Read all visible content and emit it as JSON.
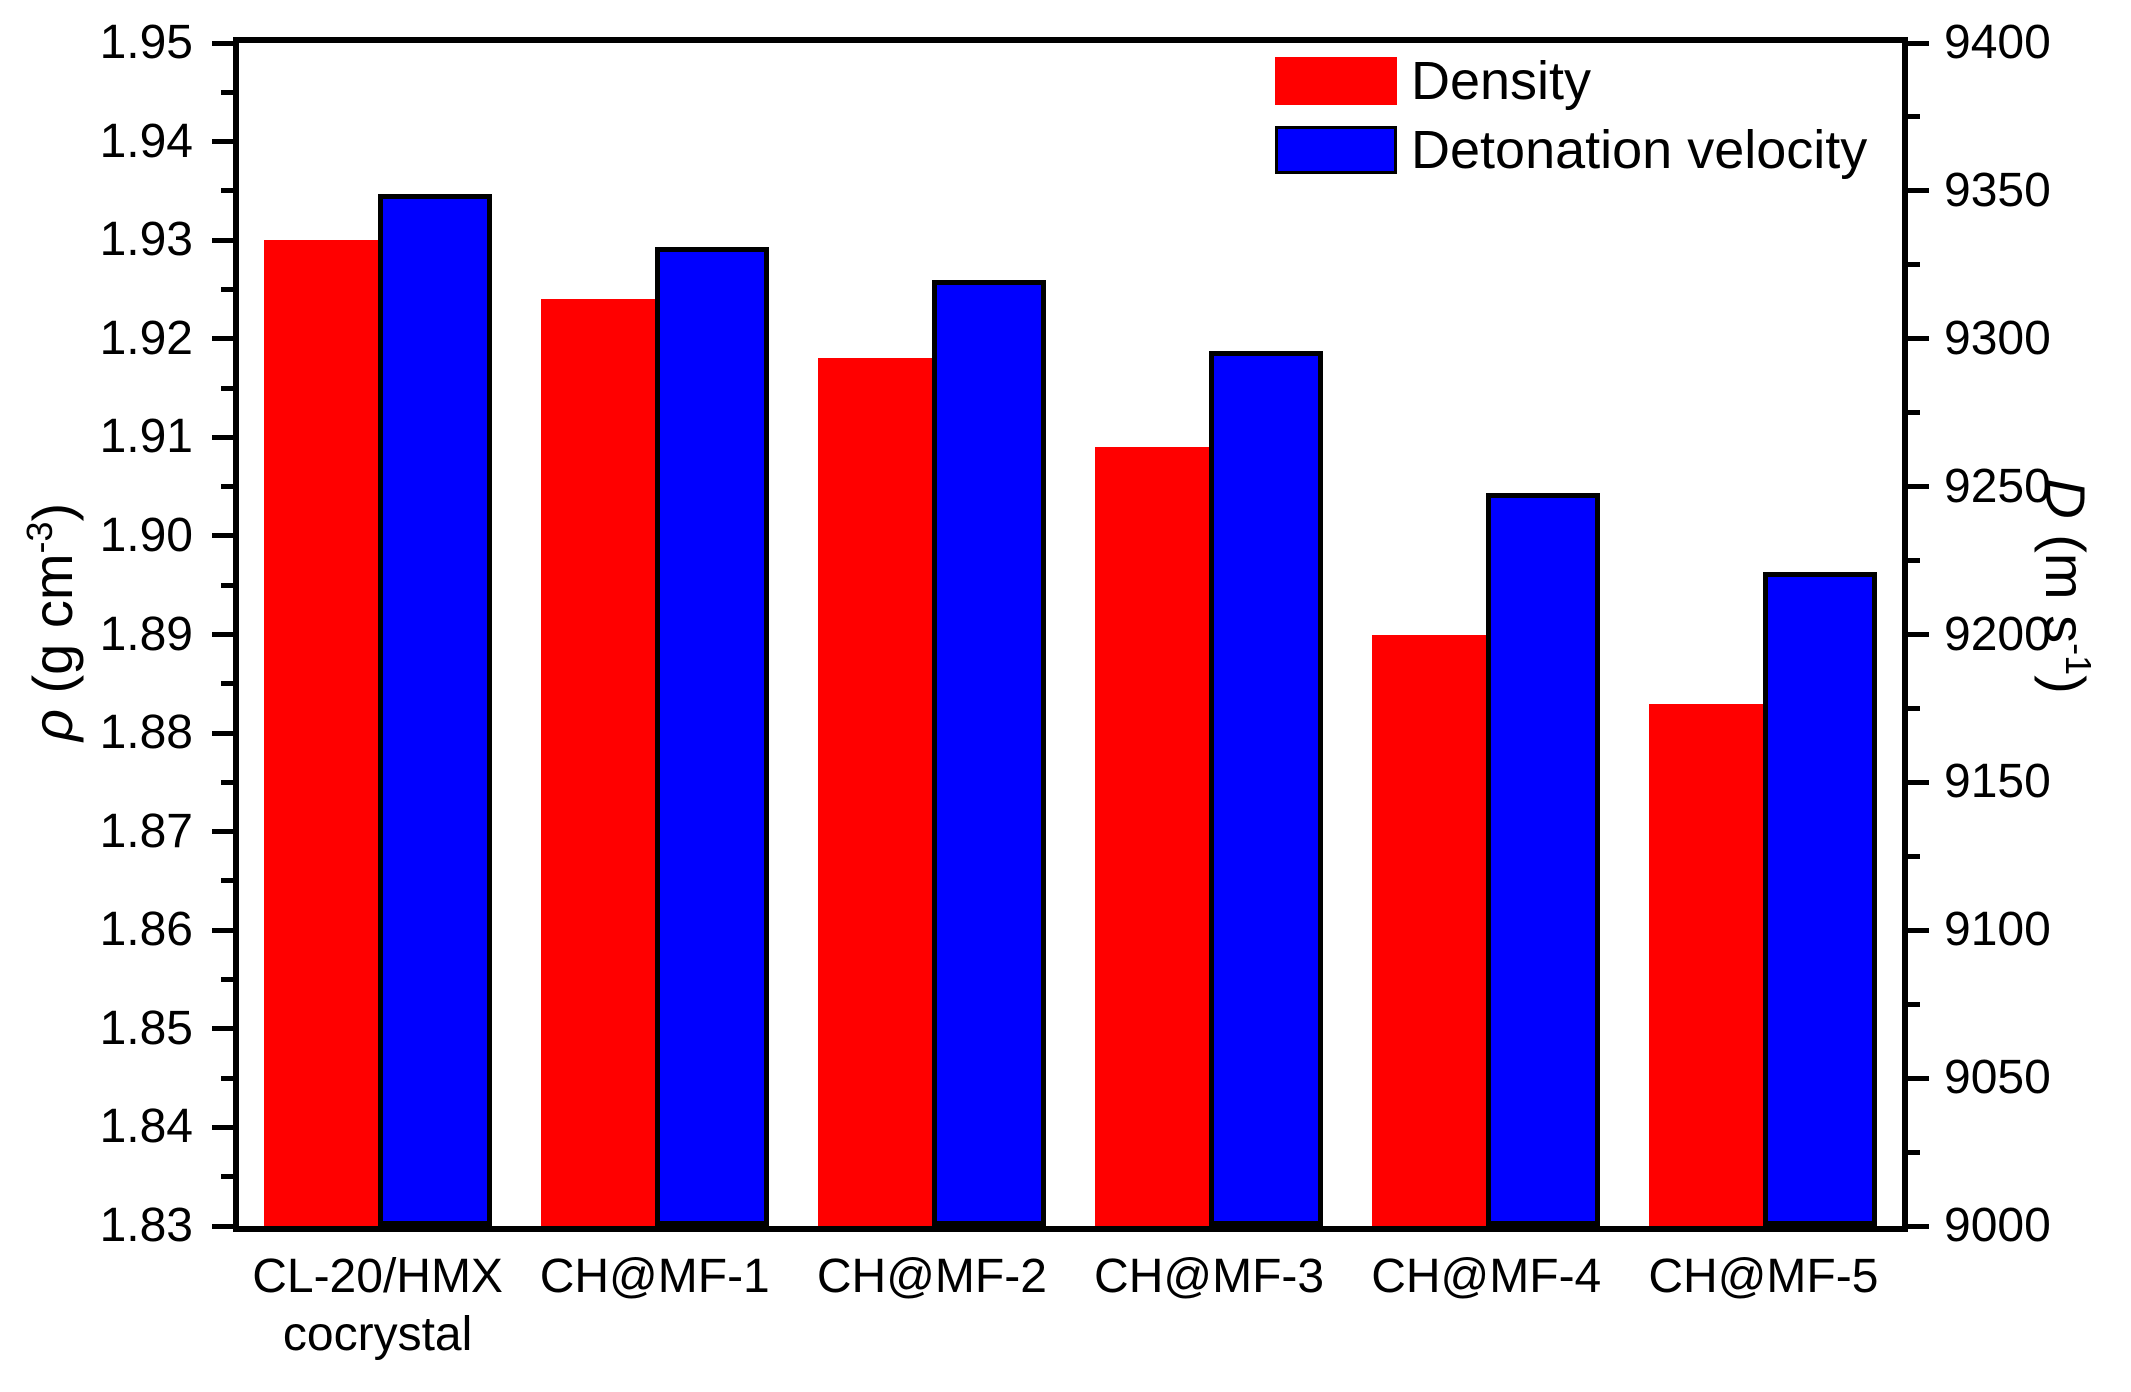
{
  "chart_data": {
    "type": "bar",
    "title": "",
    "categories": [
      "CL-20/HMX cocrystal",
      "CH@MF-1",
      "CH@MF-2",
      "CH@MF-3",
      "CH@MF-4",
      "CH@MF-5"
    ],
    "category_label_lines": [
      [
        "CL-20/HMX",
        "cocrystal"
      ],
      [
        "CH@MF-1"
      ],
      [
        "CH@MF-2"
      ],
      [
        "CH@MF-3"
      ],
      [
        "CH@MF-4"
      ],
      [
        "CH@MF-5"
      ]
    ],
    "series": [
      {
        "name": "Density",
        "axis": "left",
        "color": "#ff0000",
        "border_color": "none",
        "values": [
          1.93,
          1.924,
          1.918,
          1.909,
          1.89,
          1.883
        ]
      },
      {
        "name": "Detonation velocity",
        "axis": "right",
        "color": "#0000ff",
        "border_color": "#000000",
        "values": [
          9349,
          9331,
          9320,
          9296,
          9248,
          9221
        ]
      }
    ],
    "left_axis": {
      "symbol": "ρ",
      "unit_prefix": " (g cm",
      "unit_sup": "-3",
      "unit_suffix": ")",
      "min": 1.83,
      "max": 1.95,
      "major_step": 0.01,
      "minor_step": 0.005,
      "tick_labels": [
        "1.95",
        "1.94",
        "1.93",
        "1.92",
        "1.91",
        "1.90",
        "1.89",
        "1.88",
        "1.87",
        "1.86",
        "1.85",
        "1.84",
        "1.83"
      ]
    },
    "right_axis": {
      "symbol": "D",
      "unit_prefix": " (m s",
      "unit_sup": "-1",
      "unit_suffix": ")",
      "min": 9000,
      "max": 9400,
      "major_step": 50,
      "minor_step": 25,
      "tick_labels": [
        "9400",
        "9350",
        "9300",
        "9250",
        "9200",
        "9150",
        "9100",
        "9050",
        "9000"
      ]
    },
    "legend": {
      "position": "top-right",
      "items": [
        {
          "label": "Density",
          "color": "#ff0000"
        },
        {
          "label": "Detonation velocity",
          "color": "#0000ff"
        }
      ]
    },
    "grid": false,
    "background": "#ffffff",
    "axis_color": "#000000"
  }
}
